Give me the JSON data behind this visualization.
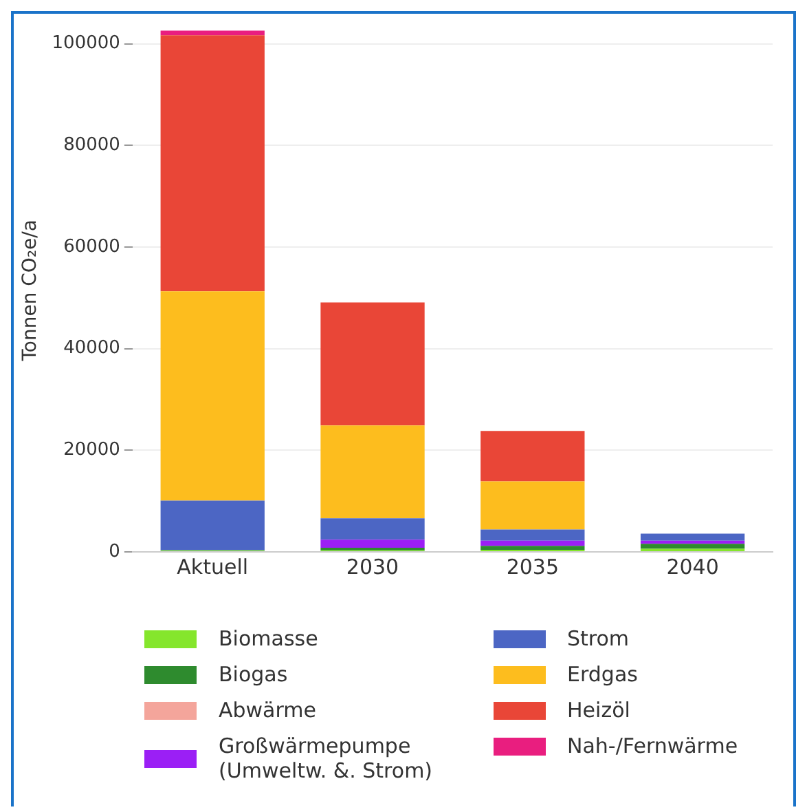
{
  "chart_data": {
    "type": "bar",
    "stacked": true,
    "ylabel": "Tonnen CO₂e/a",
    "categories": [
      "Aktuell",
      "2030",
      "2035",
      "2040"
    ],
    "ylim": [
      0,
      103000
    ],
    "yticks": [
      0,
      20000,
      40000,
      60000,
      80000,
      100000
    ],
    "grid": "y",
    "legend": "bottom",
    "series": [
      {
        "name": "Biomasse",
        "color": "#85e62c",
        "values": [
          300,
          300,
          400,
          600
        ]
      },
      {
        "name": "Biogas",
        "color": "#2e8b2e",
        "values": [
          0,
          500,
          800,
          1000
        ]
      },
      {
        "name": "Abwärme",
        "color": "#f4a59b",
        "values": [
          0,
          0,
          0,
          0
        ]
      },
      {
        "name": "Großwärmepumpe (Umweltw. &. Strom)",
        "color": "#9b1ff5",
        "values": [
          0,
          1600,
          1000,
          600
        ]
      },
      {
        "name": "Strom",
        "color": "#4c66c4",
        "values": [
          9800,
          4200,
          2200,
          1400
        ]
      },
      {
        "name": "Erdgas",
        "color": "#fdbd1e",
        "values": [
          41200,
          18300,
          9500,
          0
        ]
      },
      {
        "name": "Heizöl",
        "color": "#e94637",
        "values": [
          50400,
          24200,
          9900,
          0
        ]
      },
      {
        "name": "Nah-/Fernwärme",
        "color": "#e91e7f",
        "values": [
          900,
          0,
          0,
          0
        ]
      }
    ]
  }
}
